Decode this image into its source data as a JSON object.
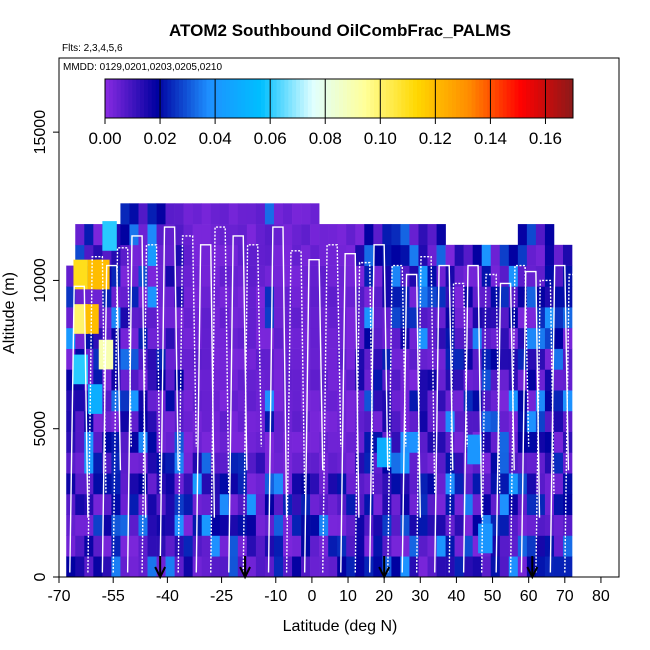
{
  "chart_data": {
    "type": "heatmap",
    "title": "ATOM2 Southbound OilCombFrac_PALMS",
    "flights_label": "Flts: 2,3,4,5,6",
    "dates_label": "MMDD: 0129,0201,0203,0205,0210",
    "xlabel": "Latitude (deg N)",
    "ylabel": "Altitude (m)",
    "xlim": [
      -70,
      85
    ],
    "ylim": [
      0,
      17500
    ],
    "x_ticks": [
      -70,
      -55,
      -40,
      -25,
      -10,
      0,
      10,
      20,
      30,
      40,
      50,
      60,
      70,
      80
    ],
    "y_ticks": [
      0,
      5000,
      10000,
      15000
    ],
    "colorbar": {
      "range": [
        0,
        0.17
      ],
      "ticks": [
        "0.00",
        "0.02",
        "0.04",
        "0.06",
        "0.08",
        "0.10",
        "0.12",
        "0.14",
        "0.16"
      ],
      "colors": [
        "#8A2BE2",
        "#0000A0",
        "#1E90FF",
        "#00BFFF",
        "#E0FFFF",
        "#FFFF99",
        "#FFD700",
        "#FF8C00",
        "#FF0000",
        "#8B1A1A"
      ]
    },
    "colors": {
      "background_value": "#7B2FF7"
    },
    "high_value_cells": [
      {
        "lat": -64,
        "alt": 10200,
        "value": 0.11
      },
      {
        "lat": -60,
        "alt": 10200,
        "value": 0.12
      },
      {
        "lat": -58,
        "alt": 10200,
        "value": 0.12
      },
      {
        "lat": -64,
        "alt": 8700,
        "value": 0.1
      },
      {
        "lat": -61,
        "alt": 8700,
        "value": 0.12
      },
      {
        "lat": -57,
        "alt": 7500,
        "value": 0.09
      },
      {
        "lat": -64,
        "alt": 7000,
        "value": 0.06
      },
      {
        "lat": -60,
        "alt": 6000,
        "value": 0.05
      },
      {
        "lat": -56,
        "alt": 11500,
        "value": 0.06
      },
      {
        "lat": 20,
        "alt": 4200,
        "value": 0.05
      },
      {
        "lat": 45,
        "alt": 4300,
        "value": 0.04
      },
      {
        "lat": 48,
        "alt": 1300,
        "value": 0.04
      }
    ],
    "arrows_lat": [
      -42,
      -18.5,
      20,
      61
    ]
  }
}
